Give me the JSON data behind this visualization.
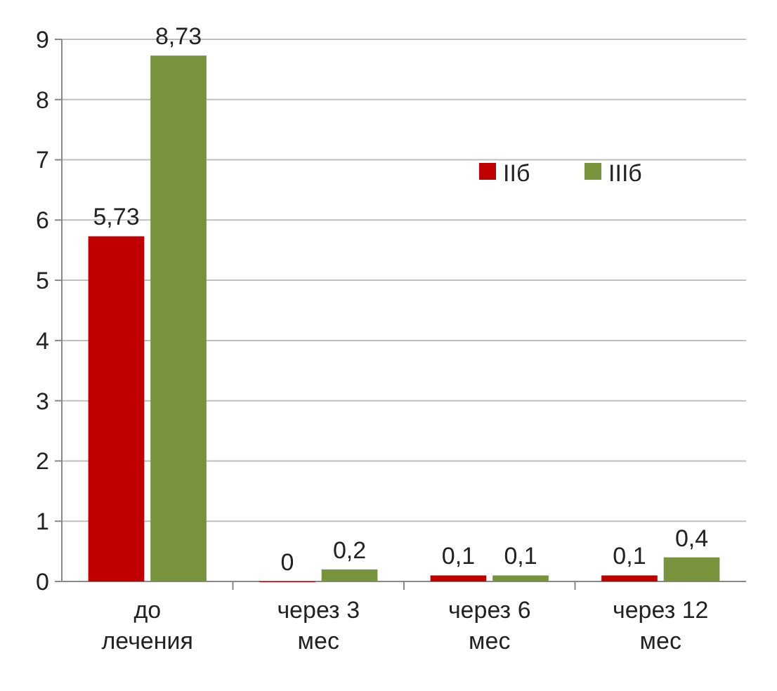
{
  "chart_data": {
    "type": "bar",
    "categories": [
      "до лечения",
      "через 3 мес",
      "через 6 мес",
      "через 12 мес"
    ],
    "series": [
      {
        "name": "IIб",
        "color": "#c00000",
        "values": [
          5.73,
          0,
          0.1,
          0.1
        ],
        "value_labels": [
          "5,73",
          "0",
          "0,1",
          "0,1"
        ]
      },
      {
        "name": "IIIб",
        "color": "#77933c",
        "values": [
          8.73,
          0.2,
          0.1,
          0.4
        ],
        "value_labels": [
          "8,73",
          "0,2",
          "0,1",
          "0,4"
        ]
      }
    ],
    "ylim": [
      0,
      9
    ],
    "yticks": [
      0,
      1,
      2,
      3,
      4,
      5,
      6,
      7,
      8,
      9
    ],
    "grid": "y",
    "legend": "top right"
  }
}
